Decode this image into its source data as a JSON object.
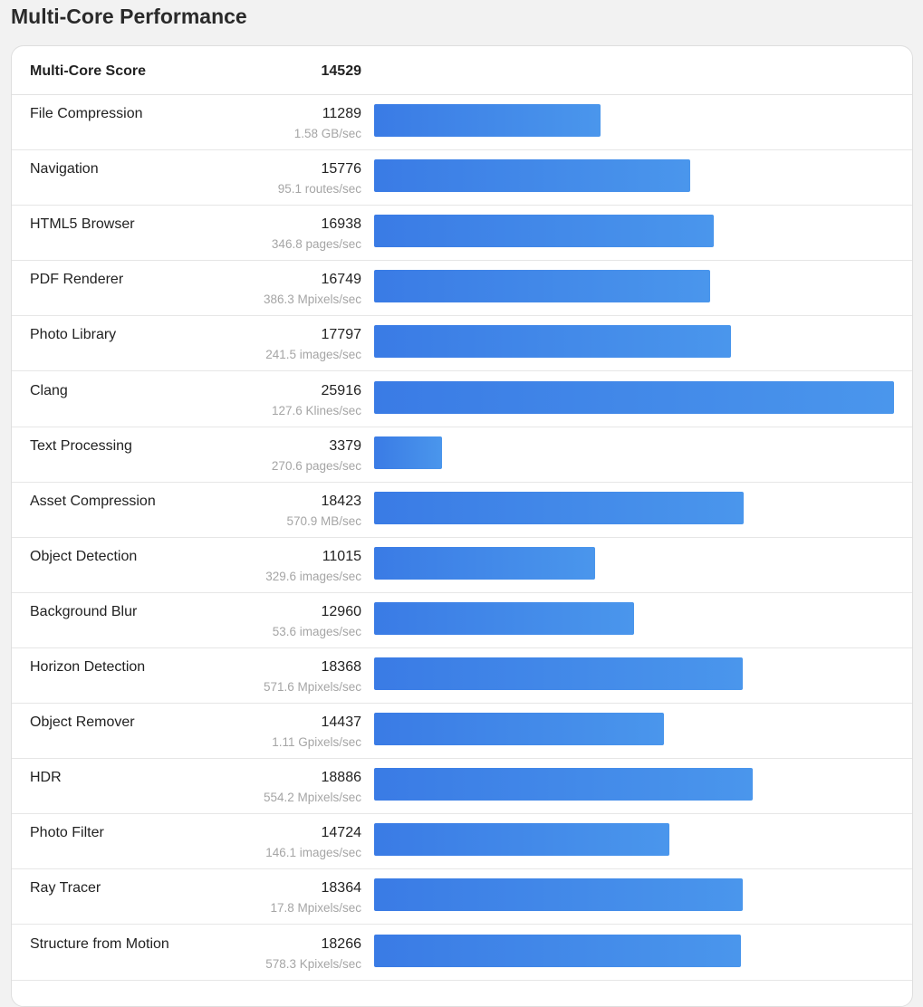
{
  "title": "Multi-Core Performance",
  "colors": {
    "bar_start": "#3a7be5",
    "bar_end": "#4a96ec"
  },
  "chart_data": {
    "type": "bar",
    "orientation": "horizontal",
    "summary": {
      "label": "Multi-Core Score",
      "value": 14529
    },
    "categories": [
      "File Compression",
      "Navigation",
      "HTML5 Browser",
      "PDF Renderer",
      "Photo Library",
      "Clang",
      "Text Processing",
      "Asset Compression",
      "Object Detection",
      "Background Blur",
      "Horizon Detection",
      "Object Remover",
      "HDR",
      "Photo Filter",
      "Ray Tracer",
      "Structure from Motion"
    ],
    "values": [
      11289,
      15776,
      16938,
      16749,
      17797,
      25916,
      3379,
      18423,
      11015,
      12960,
      18368,
      14437,
      18886,
      14724,
      18364,
      18266
    ],
    "units": [
      "1.58 GB/sec",
      "95.1 routes/sec",
      "346.8 pages/sec",
      "386.3 Mpixels/sec",
      "241.5 images/sec",
      "127.6 Klines/sec",
      "270.6 pages/sec",
      "570.9 MB/sec",
      "329.6 images/sec",
      "53.6 images/sec",
      "571.6 Mpixels/sec",
      "1.11 Gpixels/sec",
      "554.2 Mpixels/sec",
      "146.1 images/sec",
      "17.8 Mpixels/sec",
      "578.3 Kpixels/sec"
    ]
  }
}
